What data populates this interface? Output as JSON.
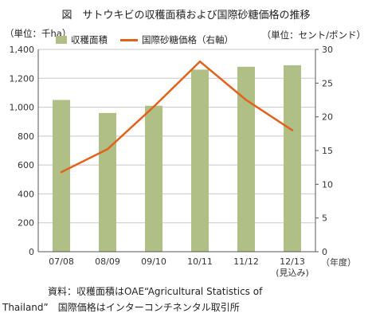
{
  "chart_data": {
    "type": "bar+line",
    "title": "図　サトウキビの収穫面積および国際砂糖価格の推移",
    "left_unit": "（単位：千ha）",
    "right_unit": "（単位：セント/ポンド）",
    "categories": [
      "07/08",
      "08/09",
      "09/10",
      "10/11",
      "11/12",
      "12/13"
    ],
    "category_sublabels": [
      "",
      "",
      "",
      "",
      "",
      "(見込み)"
    ],
    "x_unit": "（年度）",
    "series": [
      {
        "name": "収穫面積",
        "type": "bar",
        "axis": "left",
        "color": "#afbf86",
        "values": [
          1050,
          960,
          1010,
          1260,
          1280,
          1290
        ]
      },
      {
        "name": "国際砂糖価格（右軸）",
        "type": "line",
        "axis": "right",
        "color": "#e2621b",
        "values": [
          11.8,
          15.2,
          21.5,
          28.2,
          22.5,
          18.0
        ]
      }
    ],
    "ylim_left": [
      0,
      1400
    ],
    "yticks_left": [
      "0",
      "200",
      "400",
      "600",
      "800",
      "1,000",
      "1,200",
      "1,400"
    ],
    "ylim_right": [
      0,
      30
    ],
    "yticks_right": [
      "0",
      "5",
      "10",
      "15",
      "20",
      "25",
      "30"
    ],
    "grid": "horizontal",
    "legend_position": "top"
  },
  "source": {
    "line1": "資料：収穫面積はOAE“Agricultural Statistics of",
    "line2": "Thailand”　国際価格はインターコンチネンタル取引所"
  }
}
